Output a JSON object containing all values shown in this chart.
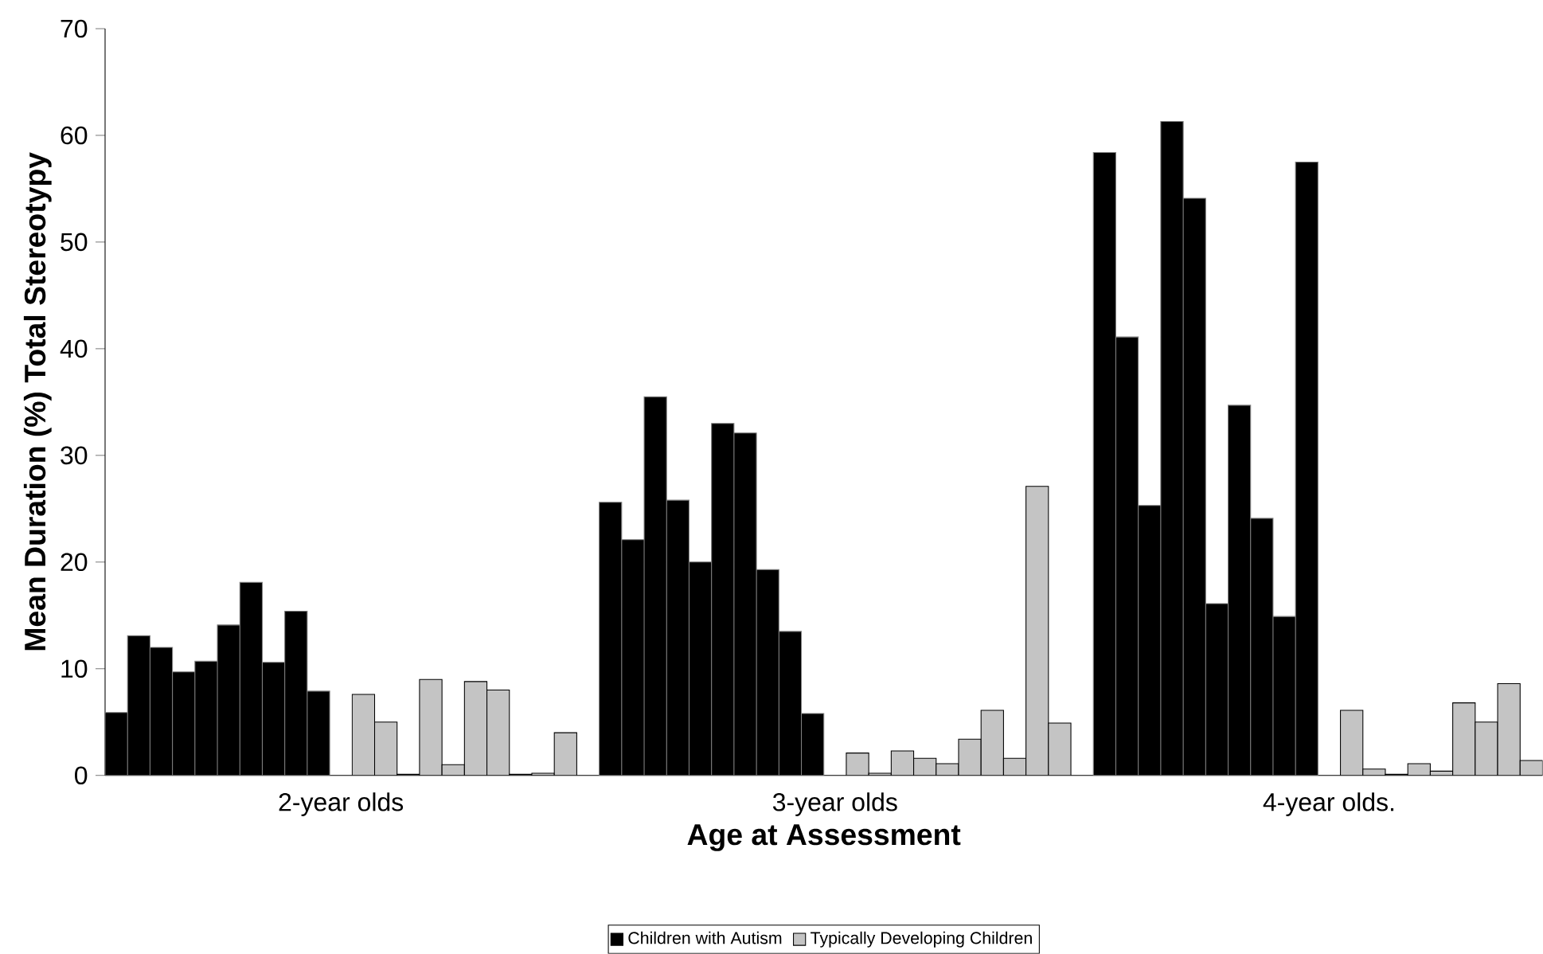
{
  "chart_data": {
    "type": "bar",
    "xlabel": "Age at Assessment",
    "ylabel": "Mean Duration (%) Total Stereotypy",
    "categories": [
      null,
      null,
      null,
      null,
      null,
      null,
      null,
      null,
      null,
      null,
      "2-year olds",
      null,
      null,
      null,
      null,
      null,
      null,
      null,
      null,
      null,
      null,
      null,
      null,
      null,
      null,
      null,
      null,
      null,
      null,
      null,
      null,
      null,
      "3-year olds",
      null,
      null,
      null,
      null,
      null,
      null,
      null,
      null,
      null,
      null,
      null,
      null,
      null,
      null,
      null,
      null,
      null,
      null,
      null,
      null,
      null,
      "4-year olds.",
      null,
      null,
      null,
      null,
      null,
      null,
      null,
      null,
      null
    ],
    "series": [
      {
        "name": "Children with Autism",
        "color": "#000000",
        "values": [
          5.9,
          13.1,
          12.0,
          9.7,
          10.7,
          14.1,
          18.1,
          10.6,
          15.4,
          7.9,
          null,
          null,
          null,
          null,
          null,
          null,
          null,
          null,
          null,
          null,
          null,
          null,
          25.6,
          22.1,
          35.5,
          25.8,
          20.0,
          33.0,
          32.1,
          19.3,
          13.5,
          5.8,
          null,
          null,
          null,
          null,
          null,
          null,
          null,
          null,
          null,
          null,
          null,
          null,
          58.4,
          41.1,
          25.3,
          61.3,
          54.1,
          16.1,
          34.7,
          24.1,
          14.9,
          57.5,
          null,
          null,
          null,
          null,
          null,
          null,
          null,
          null,
          null,
          null
        ]
      },
      {
        "name": "Typically Developing Children",
        "color": "#c4c4c4",
        "values": [
          null,
          null,
          null,
          null,
          null,
          null,
          null,
          null,
          null,
          null,
          null,
          7.6,
          5.0,
          0.1,
          9.0,
          1.0,
          8.8,
          8.0,
          0.1,
          0.2,
          4.0,
          null,
          null,
          null,
          null,
          null,
          null,
          null,
          null,
          null,
          null,
          null,
          null,
          2.1,
          0.2,
          2.3,
          1.6,
          1.1,
          3.4,
          6.1,
          1.6,
          27.1,
          4.9,
          null,
          null,
          null,
          null,
          null,
          null,
          null,
          null,
          null,
          null,
          null,
          null,
          6.1,
          0.6,
          0.1,
          1.1,
          0.4,
          6.8,
          5.0,
          8.6,
          1.4
        ]
      }
    ],
    "ylim": [
      0,
      70
    ],
    "yticks": [
      0,
      10,
      20,
      30,
      40,
      50,
      60,
      70
    ],
    "legend": "bottom"
  }
}
